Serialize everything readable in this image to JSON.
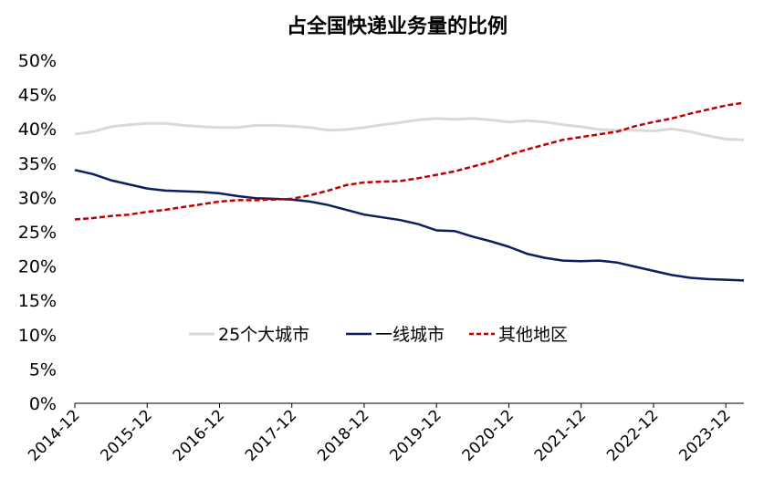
{
  "chart_data": {
    "type": "line",
    "title": "占全国快递业务量的比例",
    "xlabel": "",
    "ylabel": "",
    "ylim": [
      0,
      50
    ],
    "yticks": [
      "0%",
      "5%",
      "10%",
      "15%",
      "20%",
      "25%",
      "30%",
      "35%",
      "40%",
      "45%",
      "50%"
    ],
    "x_tick_labels": [
      "2014-12",
      "2015-12",
      "2016-12",
      "2017-12",
      "2018-12",
      "2019-12",
      "2020-12",
      "2021-12",
      "2022-12",
      "2023-12"
    ],
    "x": [
      "2014-12",
      "2015-03",
      "2015-06",
      "2015-09",
      "2015-12",
      "2016-03",
      "2016-06",
      "2016-09",
      "2016-12",
      "2017-03",
      "2017-06",
      "2017-09",
      "2017-12",
      "2018-03",
      "2018-06",
      "2018-09",
      "2018-12",
      "2019-03",
      "2019-06",
      "2019-09",
      "2019-12",
      "2020-03",
      "2020-06",
      "2020-09",
      "2020-12",
      "2021-03",
      "2021-06",
      "2021-09",
      "2021-12",
      "2022-03",
      "2022-06",
      "2022-09",
      "2022-12",
      "2023-03",
      "2023-06",
      "2023-09",
      "2023-12",
      "2024-03"
    ],
    "grid": false,
    "legend_position": "center",
    "series": [
      {
        "name": "25个大城市",
        "color": "#d9d9d9",
        "style": "solid",
        "values": [
          39.2,
          39.6,
          40.3,
          40.6,
          40.8,
          40.8,
          40.5,
          40.3,
          40.2,
          40.2,
          40.5,
          40.5,
          40.4,
          40.2,
          39.8,
          39.9,
          40.2,
          40.6,
          40.9,
          41.3,
          41.5,
          41.4,
          41.5,
          41.3,
          41.0,
          41.2,
          41.0,
          40.6,
          40.3,
          39.9,
          39.8,
          39.8,
          39.7,
          40.0,
          39.6,
          39.0,
          38.5,
          38.4
        ]
      },
      {
        "name": "一线城市",
        "color": "#0b1f5c",
        "style": "solid",
        "values": [
          34.0,
          33.4,
          32.5,
          31.9,
          31.3,
          31.0,
          30.9,
          30.8,
          30.6,
          30.2,
          29.9,
          29.8,
          29.7,
          29.4,
          28.9,
          28.2,
          27.5,
          27.1,
          26.7,
          26.1,
          25.2,
          25.1,
          24.3,
          23.6,
          22.8,
          21.8,
          21.2,
          20.8,
          20.7,
          20.8,
          20.5,
          19.9,
          19.3,
          18.7,
          18.3,
          18.1,
          18.0,
          17.9
        ]
      },
      {
        "name": "其他地区",
        "color": "#c00000",
        "style": "dashed",
        "values": [
          26.8,
          27.0,
          27.3,
          27.5,
          27.9,
          28.2,
          28.6,
          29.0,
          29.4,
          29.6,
          29.6,
          29.7,
          29.8,
          30.3,
          31.0,
          31.8,
          32.2,
          32.3,
          32.4,
          32.8,
          33.3,
          33.8,
          34.5,
          35.2,
          36.2,
          37.0,
          37.7,
          38.4,
          38.8,
          39.2,
          39.6,
          40.4,
          41.0,
          41.5,
          42.2,
          42.8,
          43.4,
          43.8
        ]
      }
    ]
  }
}
